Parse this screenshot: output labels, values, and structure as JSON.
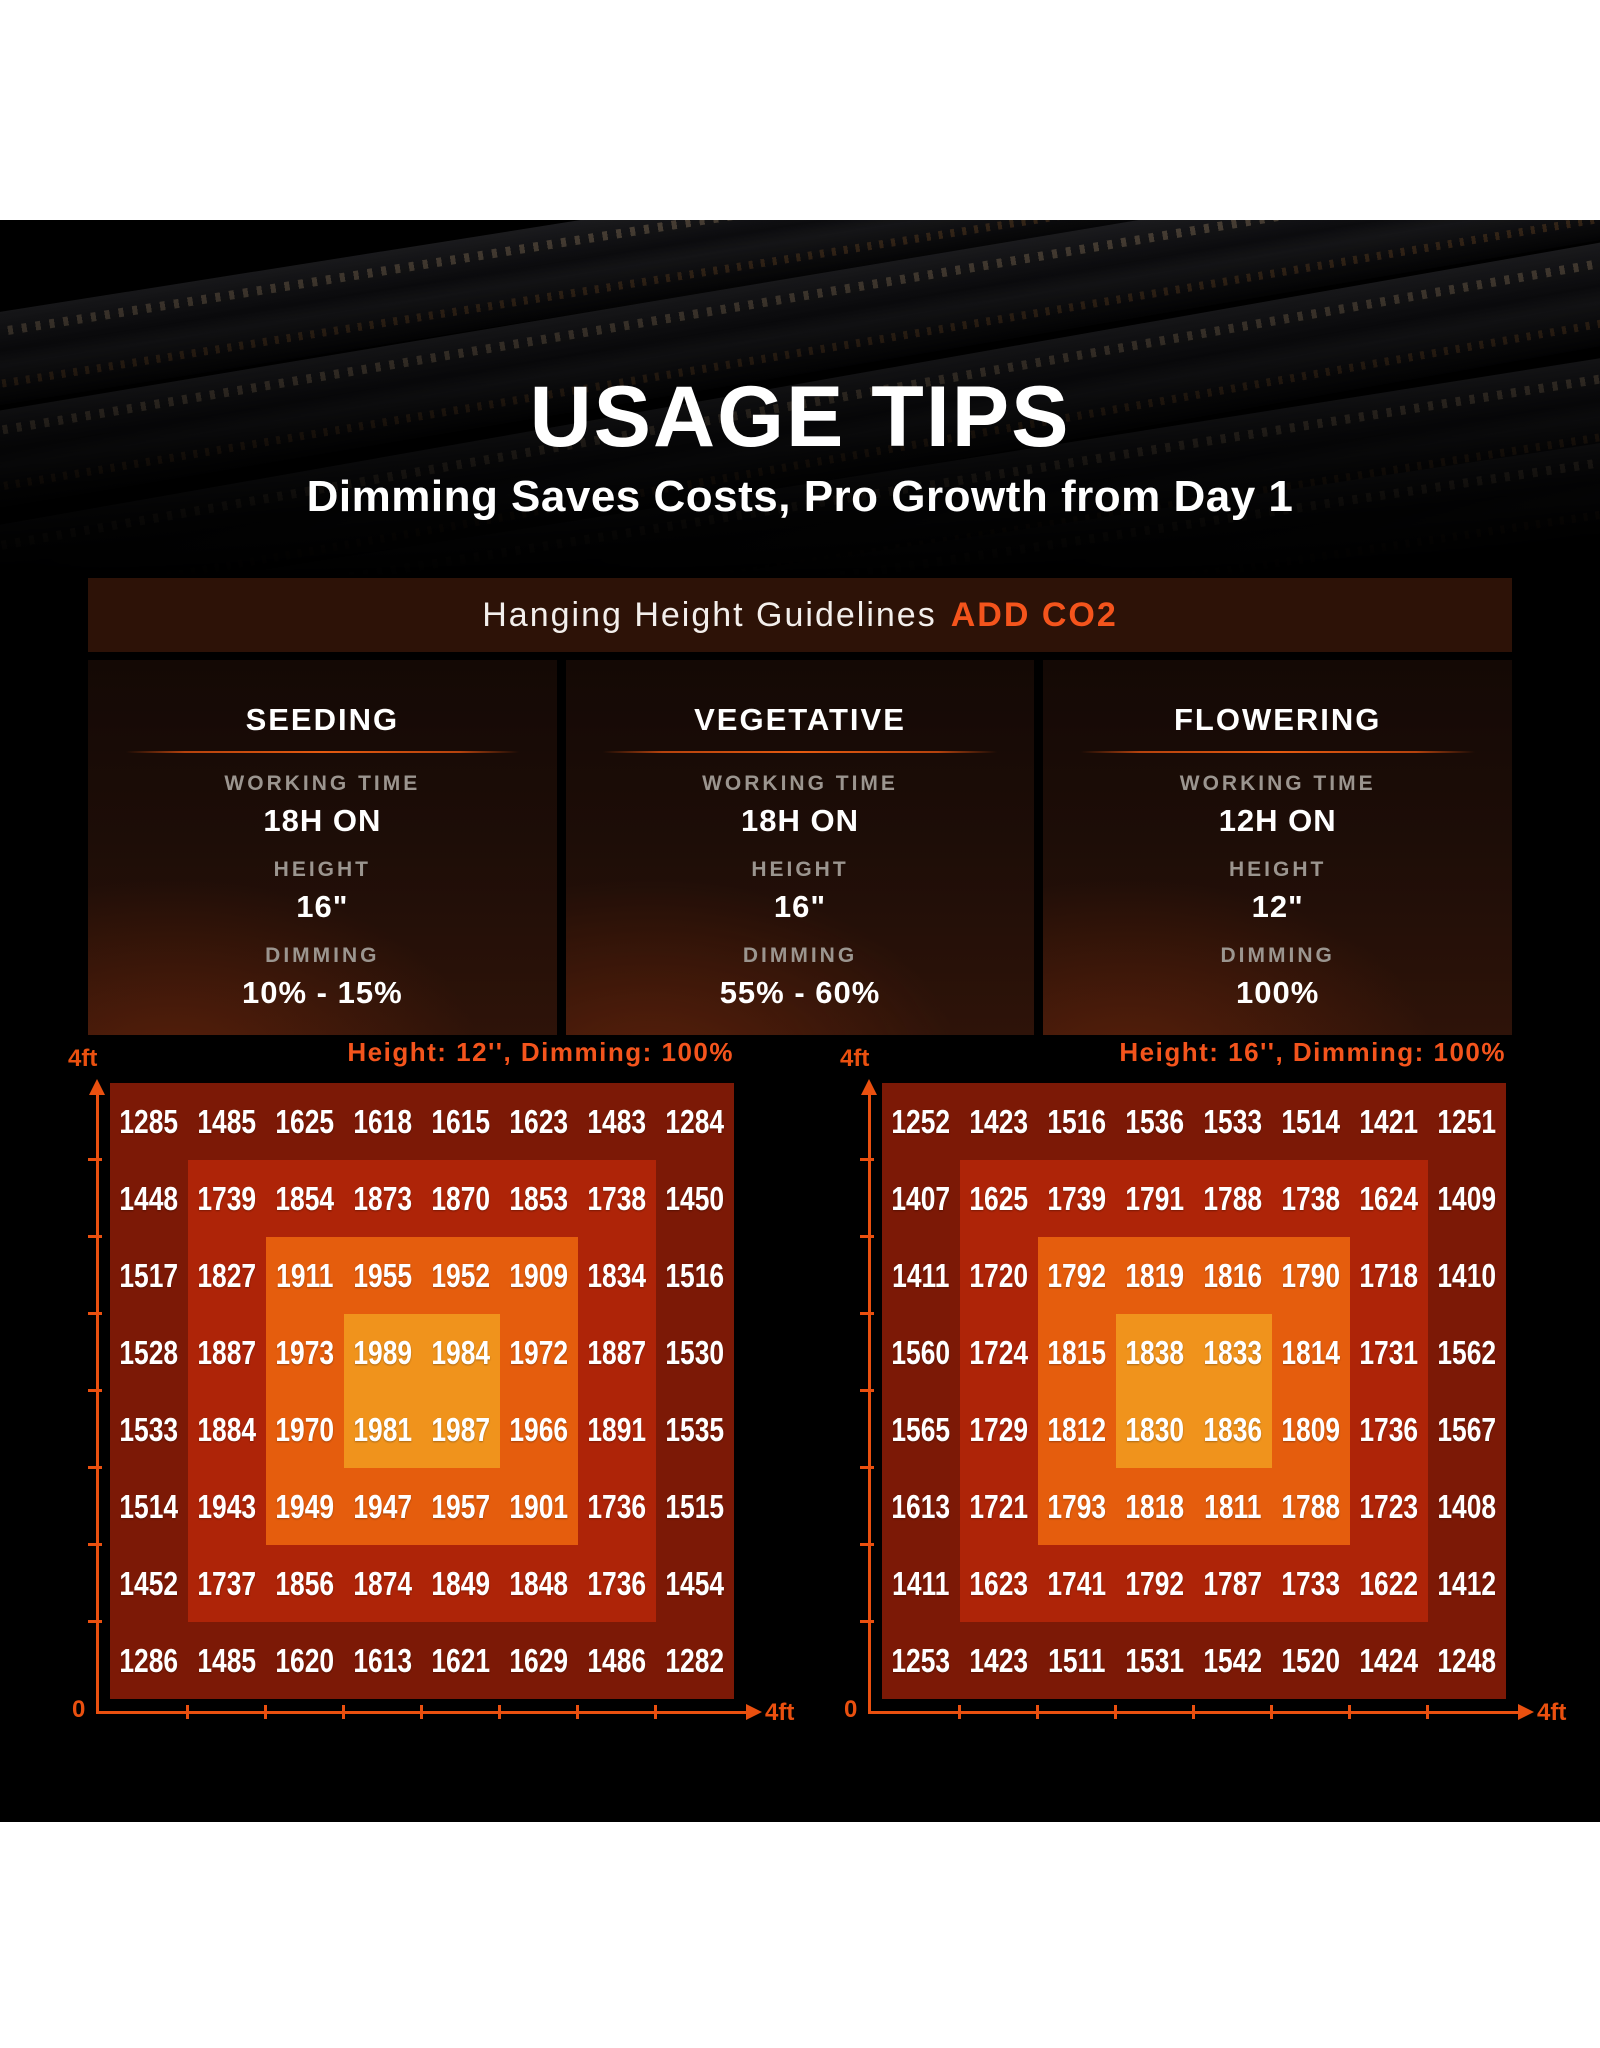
{
  "hero": {
    "title": "USAGE TIPS",
    "subtitle": "Dimming Saves Costs, Pro Growth from Day 1"
  },
  "banner": {
    "text": "Hanging Height Guidelines",
    "highlight": "ADD CO2"
  },
  "guide_labels": {
    "working_time": "WORKING TIME",
    "height": "HEIGHT",
    "dimming": "DIMMING"
  },
  "stages": [
    {
      "name": "SEEDING",
      "working_time": "18H ON",
      "height": "16\"",
      "dimming": "10% - 15%"
    },
    {
      "name": "VEGETATIVE",
      "working_time": "18H ON",
      "height": "16\"",
      "dimming": "55% - 60%"
    },
    {
      "name": "FLOWERING",
      "working_time": "12H ON",
      "height": "12\"",
      "dimming": "100%"
    }
  ],
  "colors": {
    "accent_orange": "#f4541c",
    "axis_orange": "#ea500f",
    "banner_bg": "#2d1207",
    "content_bg": "#000000",
    "label_grey": "#9b958f",
    "zone_colors": [
      "#7c1906",
      "#ae2408",
      "#e55d0d",
      "#f0931c"
    ]
  },
  "chart_data": [
    {
      "type": "heatmap",
      "title": "Height: 12'', Dimming: 100%",
      "x_axis": {
        "origin": "0",
        "end": "4ft",
        "min": 0,
        "max": 4,
        "unit": "ft"
      },
      "y_axis": {
        "end": "4ft",
        "min": 0,
        "max": 4,
        "unit": "ft"
      },
      "grid_size": "8x8",
      "zone_colors": [
        "#7c1906",
        "#ae2408",
        "#e55d0d",
        "#f0931c"
      ],
      "rows": [
        [
          1285,
          1485,
          1625,
          1618,
          1615,
          1623,
          1483,
          1284
        ],
        [
          1448,
          1739,
          1854,
          1873,
          1870,
          1853,
          1738,
          1450
        ],
        [
          1517,
          1827,
          1911,
          1955,
          1952,
          1909,
          1834,
          1516
        ],
        [
          1528,
          1887,
          1973,
          1989,
          1984,
          1972,
          1887,
          1530
        ],
        [
          1533,
          1884,
          1970,
          1981,
          1987,
          1966,
          1891,
          1535
        ],
        [
          1514,
          1943,
          1949,
          1947,
          1957,
          1901,
          1736,
          1515
        ],
        [
          1452,
          1737,
          1856,
          1874,
          1849,
          1848,
          1736,
          1454
        ],
        [
          1286,
          1485,
          1620,
          1613,
          1621,
          1629,
          1486,
          1282
        ]
      ]
    },
    {
      "type": "heatmap",
      "title": "Height: 16'', Dimming: 100%",
      "x_axis": {
        "origin": "0",
        "end": "4ft",
        "min": 0,
        "max": 4,
        "unit": "ft"
      },
      "y_axis": {
        "end": "4ft",
        "min": 0,
        "max": 4,
        "unit": "ft"
      },
      "grid_size": "8x8",
      "zone_colors": [
        "#7c1906",
        "#ae2408",
        "#e55d0d",
        "#f0931c"
      ],
      "rows": [
        [
          1252,
          1423,
          1516,
          1536,
          1533,
          1514,
          1421,
          1251
        ],
        [
          1407,
          1625,
          1739,
          1791,
          1788,
          1738,
          1624,
          1409
        ],
        [
          1411,
          1720,
          1792,
          1819,
          1816,
          1790,
          1718,
          1410
        ],
        [
          1560,
          1724,
          1815,
          1838,
          1833,
          1814,
          1731,
          1562
        ],
        [
          1565,
          1729,
          1812,
          1830,
          1836,
          1809,
          1736,
          1567
        ],
        [
          1613,
          1721,
          1793,
          1818,
          1811,
          1788,
          1723,
          1408
        ],
        [
          1411,
          1623,
          1741,
          1792,
          1787,
          1733,
          1622,
          1412
        ],
        [
          1253,
          1423,
          1511,
          1531,
          1542,
          1520,
          1424,
          1248
        ]
      ]
    }
  ]
}
